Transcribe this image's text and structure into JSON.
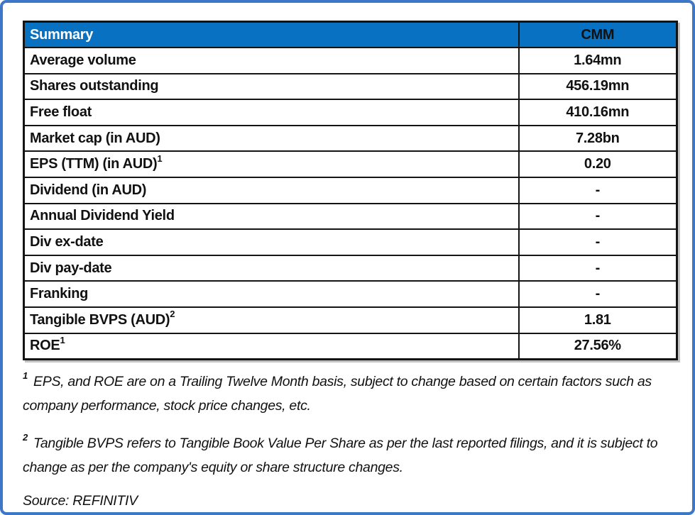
{
  "frame": {
    "border_color": "#3d78c8"
  },
  "table": {
    "header": {
      "label": "Summary",
      "value_col": "CMM",
      "bg_color": "#0971c1",
      "text_color": "#ffffff"
    },
    "rows": [
      {
        "label": "Average volume",
        "sup": "",
        "value": "1.64mn"
      },
      {
        "label": "Shares outstanding",
        "sup": "",
        "value": "456.19mn"
      },
      {
        "label": "Free float",
        "sup": "",
        "value": "410.16mn"
      },
      {
        "label": "Market cap (in AUD)",
        "sup": "",
        "value": "7.28bn"
      },
      {
        "label": "EPS (TTM) (in AUD)",
        "sup": "1",
        "value": "0.20"
      },
      {
        "label": "Dividend (in AUD)",
        "sup": "",
        "value": "-"
      },
      {
        "label": "Annual Dividend Yield",
        "sup": "",
        "value": "-"
      },
      {
        "label": "Div ex-date",
        "sup": "",
        "value": "-"
      },
      {
        "label": "Div pay-date",
        "sup": "",
        "value": "-"
      },
      {
        "label": "Franking",
        "sup": "",
        "value": "-"
      },
      {
        "label": "Tangible BVPS (AUD)",
        "sup": "2",
        "value": "1.81"
      },
      {
        "label": "ROE",
        "sup": "1",
        "value": "27.56%"
      }
    ]
  },
  "footnotes": [
    {
      "sup": "1",
      "text": "EPS, and ROE are on a Trailing Twelve Month basis, subject to change based on certain factors such as company performance, stock price changes, etc."
    },
    {
      "sup": "2",
      "text": "Tangible BVPS refers to Tangible Book Value Per Share as per the last reported filings, and it is subject to change as per the company's equity or share structure changes."
    }
  ],
  "source": "Source: REFINITIV"
}
